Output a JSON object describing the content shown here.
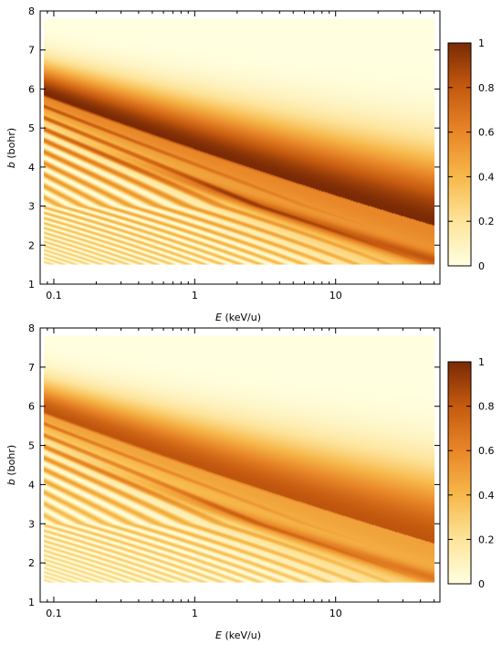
{
  "chart_data": [
    {
      "type": "heatmap",
      "xlabel_symbol": "E",
      "xlabel_unit": " (keV/u)",
      "ylabel_symbol": "b",
      "ylabel_unit": " (bohr)",
      "x_scale": "log",
      "x_ticks": [
        0.1,
        1,
        10
      ],
      "x_tick_labels": [
        "0.1",
        "1",
        "10"
      ],
      "xlim": [
        0.08,
        55
      ],
      "y_ticks": [
        1,
        2,
        3,
        4,
        5,
        6,
        7,
        8
      ],
      "y_tick_labels": [
        "1",
        "2",
        "3",
        "4",
        "5",
        "6",
        "7",
        "8"
      ],
      "ylim": [
        1,
        8
      ],
      "data_extent": {
        "x": [
          0.085,
          50
        ],
        "y": [
          1.5,
          7.8
        ]
      },
      "colorbar": {
        "range": [
          0,
          1
        ],
        "ticks": [
          0,
          0.2,
          0.4,
          0.6,
          0.8,
          1
        ],
        "tick_labels": [
          "0",
          "0.2",
          "0.4",
          "0.6",
          "0.8",
          "1"
        ],
        "colors": [
          "#ffffe0",
          "#fde49a",
          "#f7b84a",
          "#e88628",
          "#c55a0f",
          "#7a2a05"
        ]
      },
      "pattern": "oscillating probability bands decreasing in b as E increases; main broad maximum near b=5.8 at E=0.1 to b=2.5 at E=30"
    },
    {
      "type": "heatmap",
      "xlabel_symbol": "E",
      "xlabel_unit": " (keV/u)",
      "ylabel_symbol": "b",
      "ylabel_unit": " (bohr)",
      "x_scale": "log",
      "x_ticks": [
        0.1,
        1,
        10
      ],
      "x_tick_labels": [
        "0.1",
        "1",
        "10"
      ],
      "xlim": [
        0.08,
        55
      ],
      "y_ticks": [
        1,
        2,
        3,
        4,
        5,
        6,
        7,
        8
      ],
      "y_tick_labels": [
        "1",
        "2",
        "3",
        "4",
        "5",
        "6",
        "7",
        "8"
      ],
      "ylim": [
        1,
        8
      ],
      "data_extent": {
        "x": [
          0.085,
          50
        ],
        "y": [
          1.5,
          7.8
        ]
      },
      "colorbar": {
        "range": [
          0,
          1
        ],
        "ticks": [
          0,
          0.2,
          0.4,
          0.6,
          0.8,
          1
        ],
        "tick_labels": [
          "0",
          "0.2",
          "0.4",
          "0.6",
          "0.8",
          "1"
        ],
        "colors": [
          "#ffffe0",
          "#fde49a",
          "#f7b84a",
          "#e88628",
          "#c55a0f",
          "#7a2a05"
        ]
      },
      "pattern": "oscillating probability bands, lower amplitude than top panel"
    }
  ]
}
